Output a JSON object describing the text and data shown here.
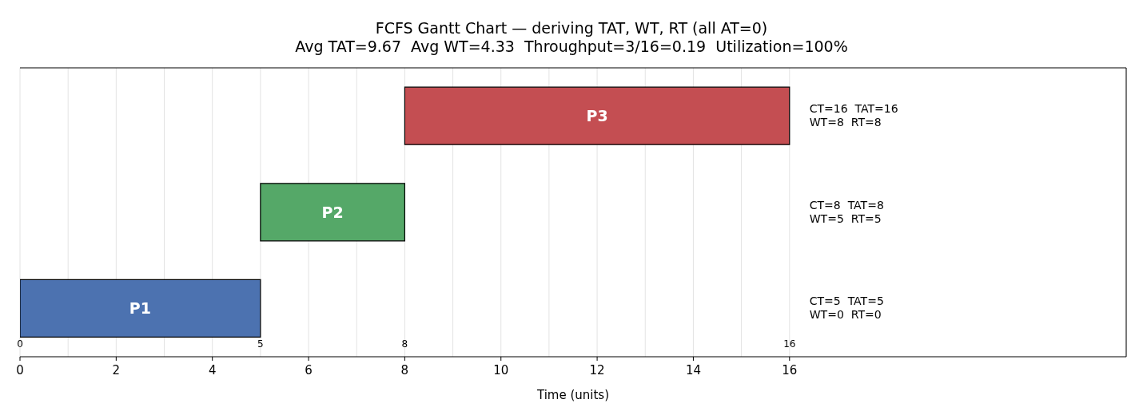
{
  "chart_data": {
    "type": "bar",
    "orientation": "horizontal",
    "title": "FCFS Gantt Chart — deriving TAT, WT, RT (all AT=0)",
    "subtitle": "Avg TAT=9.67  Avg WT=4.33  Throughput=3/16=0.19  Utilization=100%",
    "xlabel": "Time (units)",
    "categories": [
      "P3",
      "P2",
      "P1"
    ],
    "values": [
      8,
      3,
      5
    ],
    "base": [
      8,
      5,
      0
    ],
    "colors": [
      "#c44e52",
      "#55a868",
      "#4c72b0"
    ],
    "xlim": [
      0,
      23
    ],
    "xticks": [
      0,
      {
        "value": 1,
        "label": null
      },
      2,
      {
        "value": 3,
        "label": null
      },
      4,
      {
        "value": 5,
        "label": null
      },
      6,
      {
        "value": 7,
        "label": null
      },
      8,
      {
        "value": 9,
        "label": null
      },
      10,
      {
        "value": 11,
        "label": null
      },
      12,
      {
        "value": 13,
        "label": null
      },
      14,
      {
        "value": 15,
        "label": null
      },
      16
    ],
    "grid": "x",
    "tick_labels": "x",
    "x2lim": [
      0,
      23
    ],
    "x2ticks": [
      0,
      5,
      8,
      16
    ],
    "annotations": [
      "CT=16  TAT=16\nWT=8  RT=8",
      "CT=8  TAT=8\nWT=5  RT=5",
      "CT=5  TAT=5\nWT=0  RT=0"
    ]
  }
}
